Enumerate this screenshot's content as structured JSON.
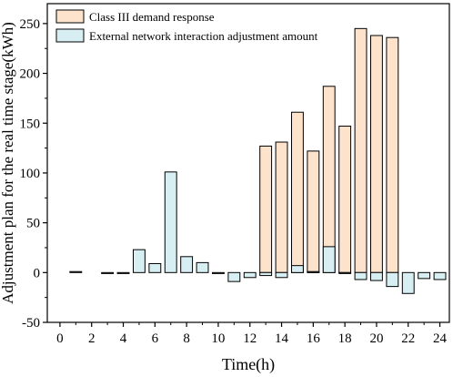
{
  "chart_data": {
    "type": "bar",
    "title": "",
    "xlabel": "Time(h)",
    "ylabel": "Adjustment plan for the real time stage(kWh)",
    "xlim": [
      -0.8,
      24.6
    ],
    "ylim": [
      -50,
      270
    ],
    "xticks": [
      0,
      2,
      4,
      6,
      8,
      10,
      12,
      14,
      16,
      18,
      20,
      22,
      24
    ],
    "yticks": [
      -50,
      0,
      50,
      100,
      150,
      200,
      250
    ],
    "x": [
      1,
      2,
      3,
      4,
      5,
      6,
      7,
      8,
      9,
      10,
      11,
      12,
      13,
      14,
      15,
      16,
      17,
      18,
      19,
      20,
      21,
      22,
      23,
      24
    ],
    "legend_position": "top-left",
    "series": [
      {
        "name": "Class III demand response",
        "color": "#fde2cc",
        "values": [
          0,
          0,
          0,
          0,
          0,
          0,
          0,
          0,
          0,
          0,
          0,
          0,
          127,
          131,
          161,
          122,
          187,
          147,
          245,
          238,
          236,
          0,
          0,
          0
        ]
      },
      {
        "name": "External network interaction adjustment amount",
        "color": "#d7eef2",
        "values": [
          1,
          0,
          -1,
          -1,
          23,
          9,
          101,
          16,
          10,
          -1,
          -9,
          -5,
          -3,
          -5,
          7,
          1,
          26,
          -1,
          -7,
          -8,
          -14,
          -21,
          -6,
          -7
        ]
      }
    ]
  }
}
